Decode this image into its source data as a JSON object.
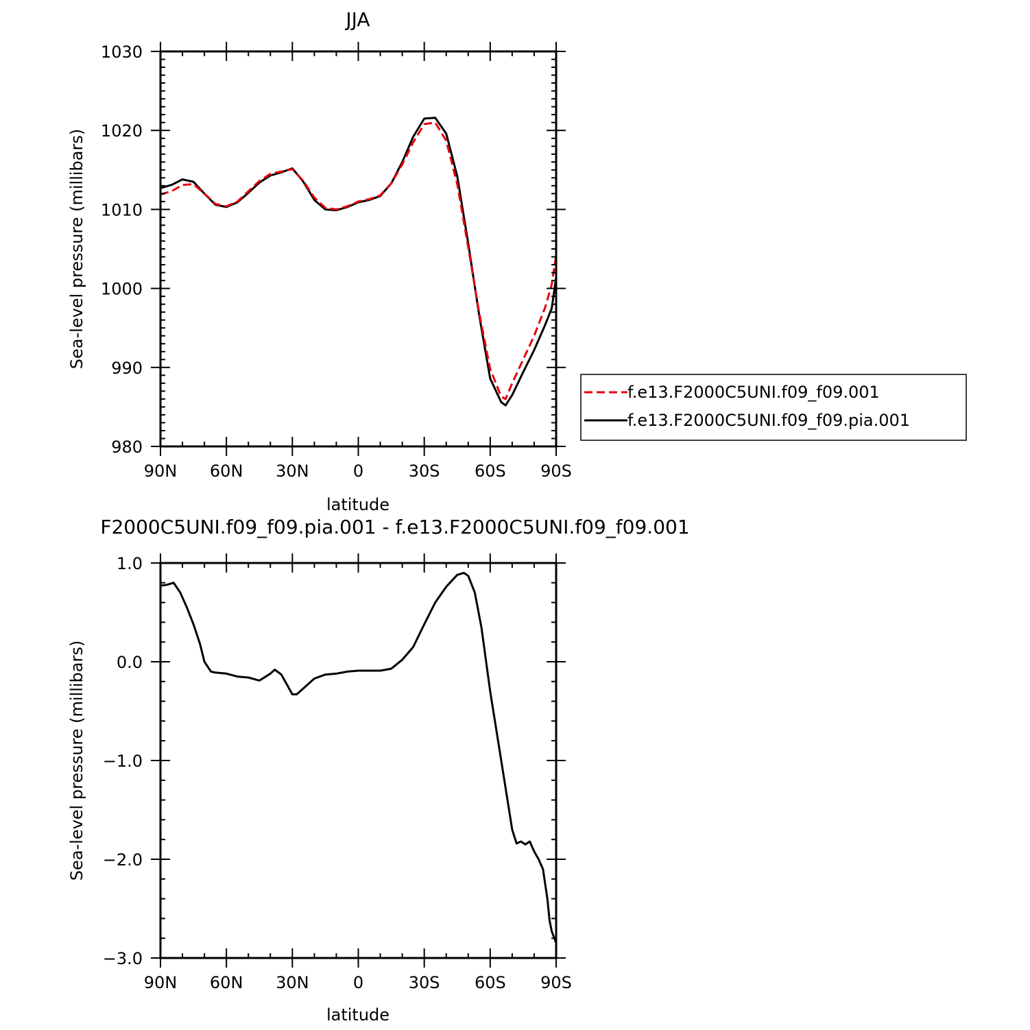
{
  "colors": {
    "series_1": "#e8000b",
    "series_2": "#000000"
  },
  "chart_data": [
    {
      "type": "line",
      "title": "JJA",
      "xlabel": "latitude",
      "ylabel": "Sea-level pressure (millibars)",
      "xlim": [
        90,
        -90
      ],
      "ylim": [
        980,
        1030
      ],
      "x_ticks": [
        90,
        60,
        30,
        0,
        -30,
        -60,
        -90
      ],
      "x_tick_labels": [
        "90N",
        "60N",
        "30N",
        "0",
        "30S",
        "60S",
        "90S"
      ],
      "y_ticks": [
        980,
        990,
        1000,
        1010,
        1020,
        1030
      ],
      "y_tick_labels": [
        "980",
        "990",
        "1000",
        "1010",
        "1020",
        "1030"
      ],
      "legend": "right",
      "grid": false,
      "x": [
        90,
        85,
        80,
        75,
        70,
        65,
        60,
        55,
        50,
        45,
        40,
        35,
        30,
        25,
        20,
        15,
        10,
        5,
        0,
        -5,
        -10,
        -15,
        -20,
        -25,
        -30,
        -35,
        -40,
        -45,
        -50,
        -55,
        -60,
        -65,
        -67,
        -70,
        -75,
        -80,
        -85,
        -88,
        -90
      ],
      "series": [
        {
          "name": "f.e13.F2000C5UNI.f09_f09.001",
          "style": "dashed",
          "values": [
            1011.9,
            1012.3,
            1013.1,
            1013.2,
            1012.0,
            1010.7,
            1010.4,
            1011.0,
            1012.3,
            1013.6,
            1014.5,
            1014.8,
            1015.1,
            1013.6,
            1011.5,
            1010.2,
            1010.0,
            1010.4,
            1011.0,
            1011.3,
            1011.8,
            1013.3,
            1015.7,
            1018.5,
            1020.8,
            1021.0,
            1018.7,
            1013.2,
            1005.2,
            996.9,
            989.8,
            986.3,
            986.0,
            988.0,
            991.0,
            994.0,
            997.6,
            1000.5,
            1004.2
          ]
        },
        {
          "name": "f.e13.F2000C5UNI.f09_f09.pia.001",
          "style": "solid",
          "values": [
            1012.7,
            1013.1,
            1013.8,
            1013.5,
            1012.0,
            1010.6,
            1010.3,
            1010.9,
            1012.1,
            1013.4,
            1014.3,
            1014.7,
            1015.2,
            1013.5,
            1011.2,
            1010.0,
            1009.9,
            1010.3,
            1010.9,
            1011.2,
            1011.7,
            1013.3,
            1016.0,
            1019.2,
            1021.5,
            1021.6,
            1019.6,
            1014.2,
            1005.7,
            996.6,
            988.6,
            985.6,
            985.2,
            986.5,
            989.4,
            992.2,
            995.4,
            997.5,
            1001.4
          ]
        }
      ]
    },
    {
      "type": "line",
      "title": "F2000C5UNI.f09_f09.pia.001 - f.e13.F2000C5UNI.f09_f09.001",
      "xlabel": "latitude",
      "ylabel": "Sea-level pressure (millibars)",
      "xlim": [
        90,
        -90
      ],
      "ylim": [
        -3.0,
        1.0
      ],
      "x_ticks": [
        90,
        60,
        30,
        0,
        -30,
        -60,
        -90
      ],
      "x_tick_labels": [
        "90N",
        "60N",
        "30N",
        "0",
        "30S",
        "60S",
        "90S"
      ],
      "y_ticks": [
        -3.0,
        -2.0,
        -1.0,
        0.0,
        1.0
      ],
      "y_tick_labels": [
        "−3.0",
        "−2.0",
        "−1.0",
        "0.0",
        "1.0"
      ],
      "grid": false,
      "x": [
        90,
        87,
        84,
        81,
        78,
        75,
        72,
        70,
        67,
        65,
        60,
        55,
        50,
        45,
        40,
        38,
        35,
        32,
        30,
        28,
        25,
        20,
        15,
        10,
        5,
        0,
        -5,
        -10,
        -15,
        -20,
        -25,
        -30,
        -35,
        -40,
        -45,
        -48,
        -50,
        -53,
        -56,
        -60,
        -65,
        -70,
        -72,
        -74,
        -76,
        -78,
        -80,
        -82,
        -84,
        -86,
        -87,
        -88,
        -90
      ],
      "series": [
        {
          "values": [
            0.77,
            0.78,
            0.8,
            0.7,
            0.55,
            0.38,
            0.18,
            0.0,
            -0.1,
            -0.11,
            -0.12,
            -0.15,
            -0.16,
            -0.19,
            -0.12,
            -0.08,
            -0.13,
            -0.25,
            -0.33,
            -0.33,
            -0.27,
            -0.17,
            -0.13,
            -0.12,
            -0.1,
            -0.09,
            -0.09,
            -0.09,
            -0.07,
            0.02,
            0.15,
            0.38,
            0.6,
            0.76,
            0.88,
            0.9,
            0.87,
            0.7,
            0.35,
            -0.3,
            -1.0,
            -1.7,
            -1.84,
            -1.82,
            -1.85,
            -1.82,
            -1.92,
            -2.0,
            -2.1,
            -2.4,
            -2.62,
            -2.73,
            -2.85
          ]
        }
      ]
    }
  ]
}
